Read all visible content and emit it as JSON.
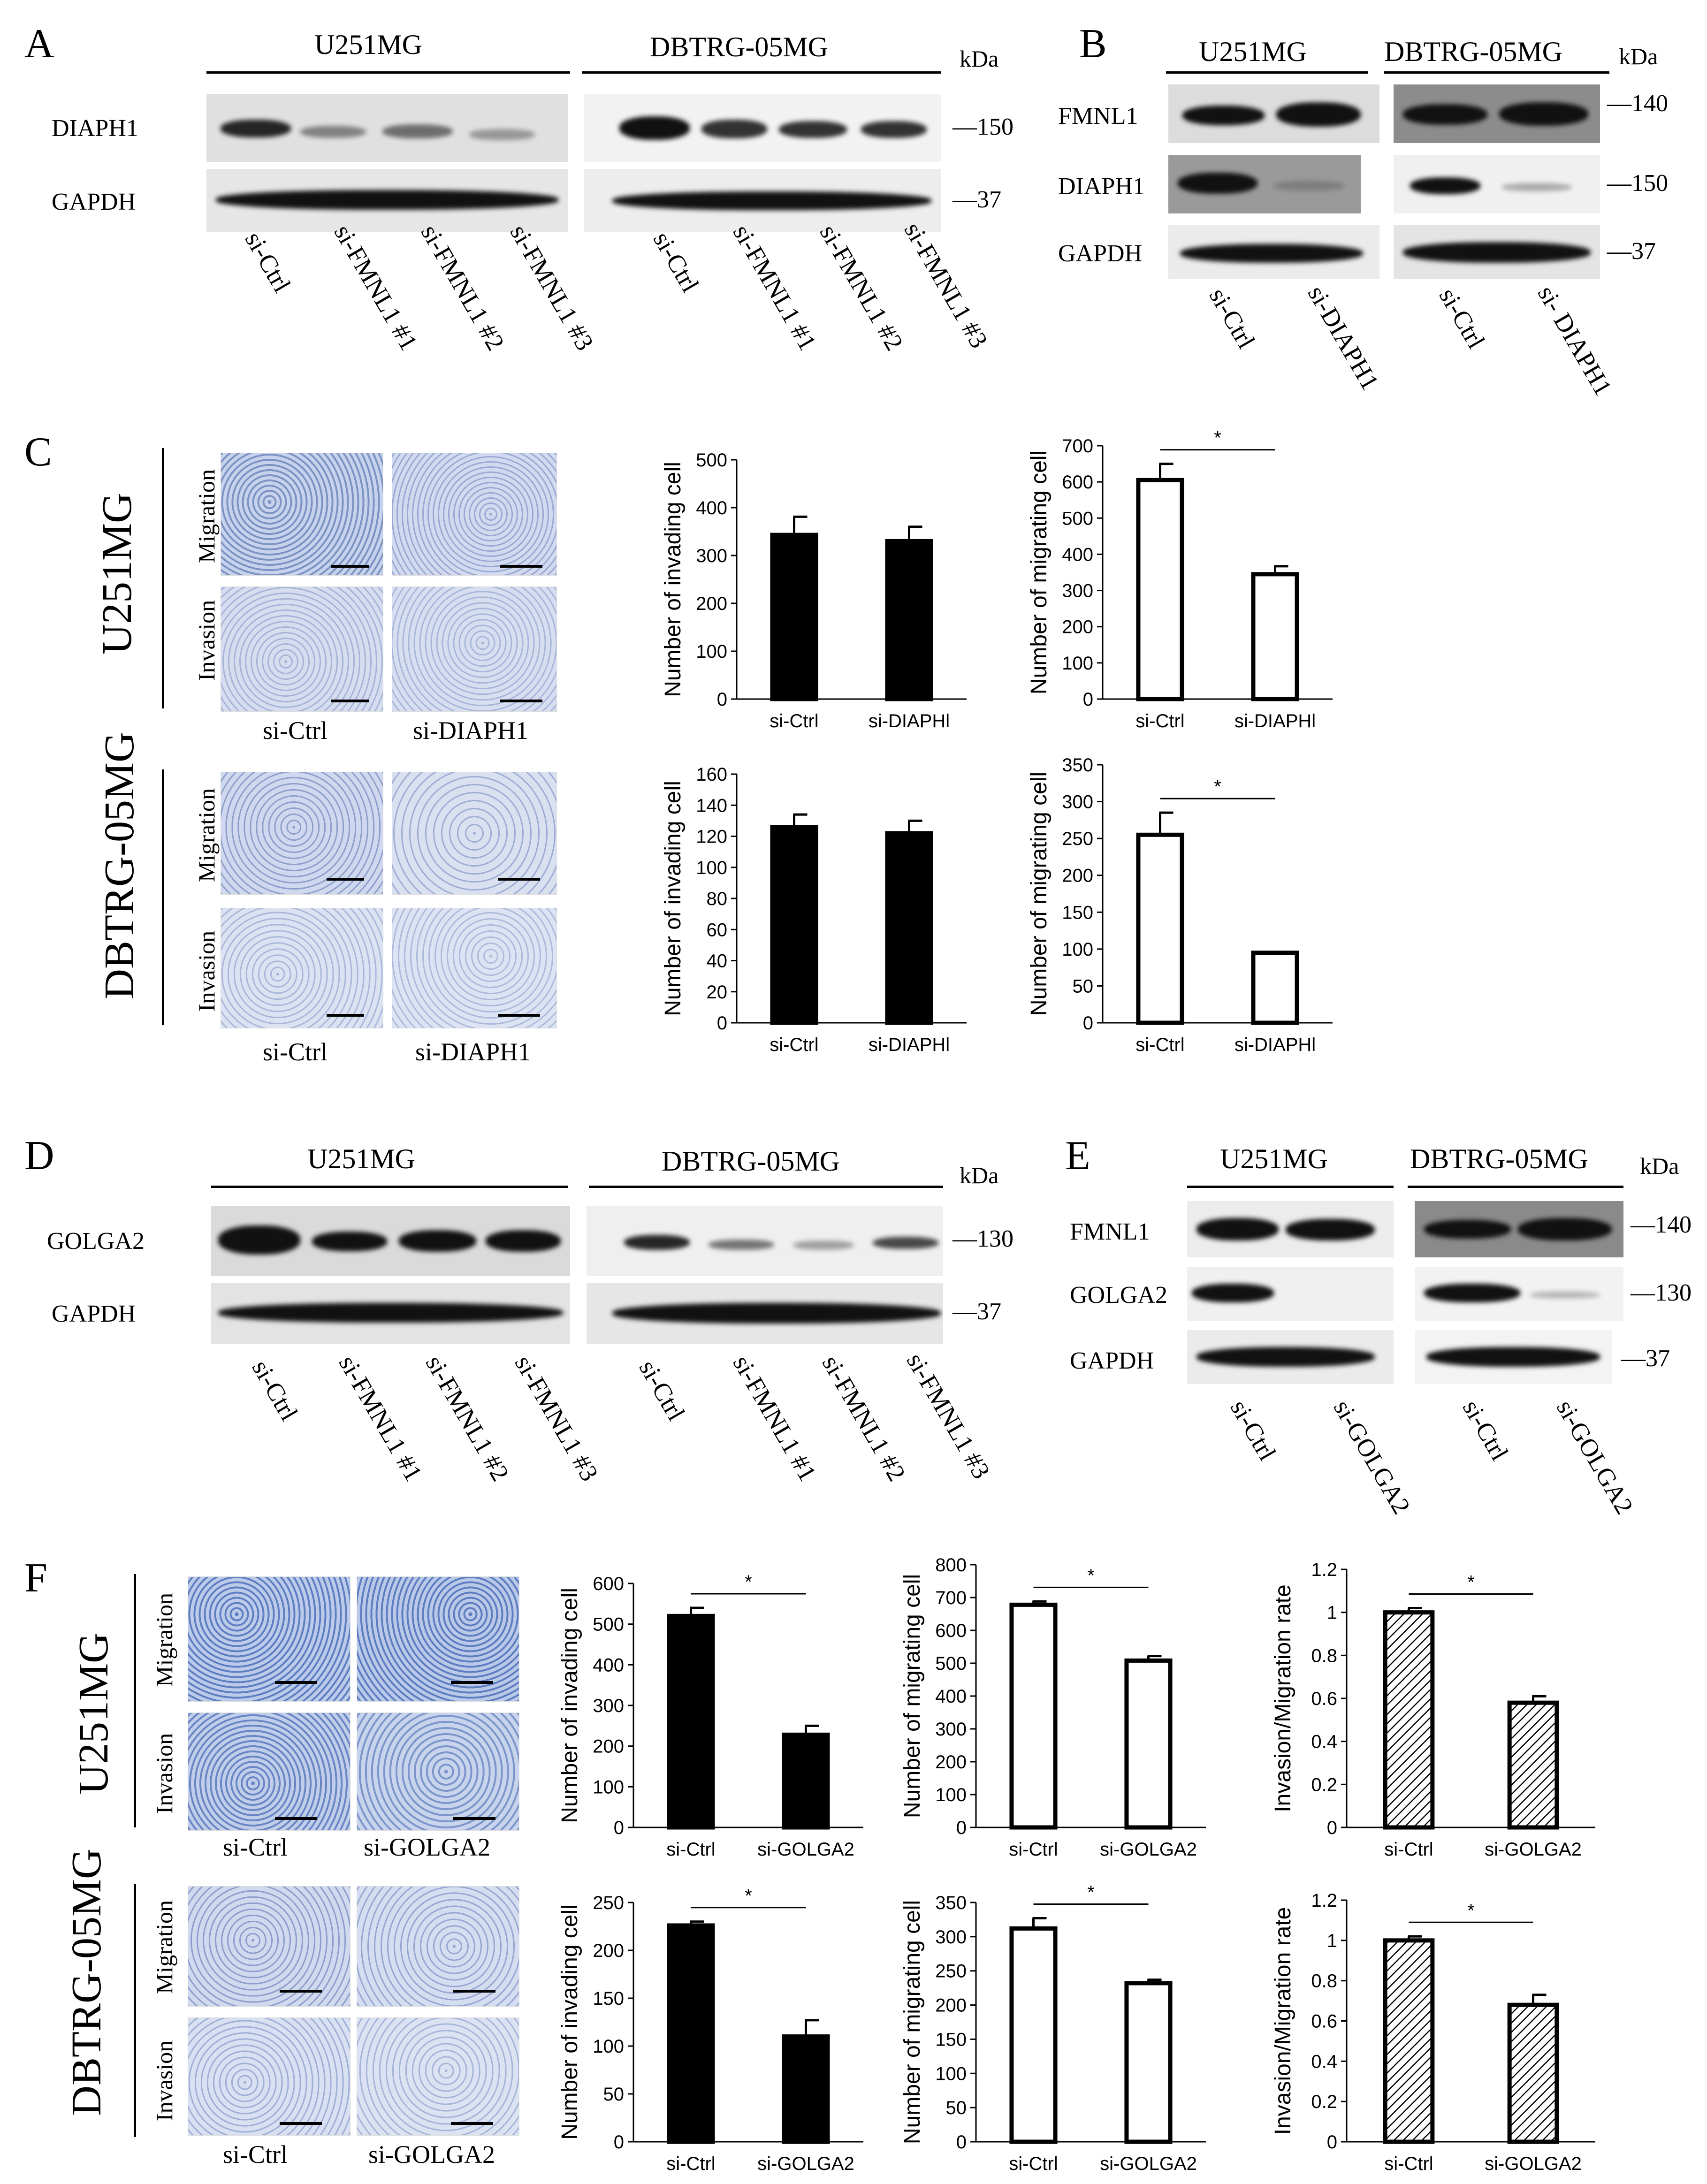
{
  "panels": {
    "A": {
      "letter": "A",
      "left_cell": "U251MG",
      "right_cell": "DBTRG-05MG",
      "kda": "kDa",
      "proteins": [
        "DIAPH1",
        "GAPDH"
      ],
      "mw": [
        "150",
        "37"
      ],
      "lanes": [
        "si-Ctrl",
        "si-FMNL1 #1",
        "si-FMNL1 #2",
        "si-FMNL1 #3"
      ]
    },
    "B": {
      "letter": "B",
      "left_cell": "U251MG",
      "right_cell": "DBTRG-05MG",
      "kda": "kDa",
      "proteins": [
        "FMNL1",
        "DIAPH1",
        "GAPDH"
      ],
      "mw": [
        "140",
        "150",
        "37"
      ],
      "lanes": [
        "si-Ctrl",
        "si-DIAPH1"
      ],
      "lanes_right": [
        "si-Ctrl",
        "si- DIAPH1"
      ]
    },
    "C": {
      "letter": "C",
      "cells": [
        "U251MG",
        "DBTRG-05MG"
      ],
      "rows": [
        "Migration",
        "Invasion"
      ],
      "conditions": [
        "si-Ctrl",
        "si-DIAPH1"
      ]
    },
    "D": {
      "letter": "D",
      "left_cell": "U251MG",
      "right_cell": "DBTRG-05MG",
      "kda": "kDa",
      "proteins": [
        "GOLGA2",
        "GAPDH"
      ],
      "mw": [
        "130",
        "37"
      ],
      "lanes": [
        "si-Ctrl",
        "si-FMNL1 #1",
        "si-FMNL1 #2",
        "si-FMNL1 #3"
      ]
    },
    "E": {
      "letter": "E",
      "left_cell": "U251MG",
      "right_cell": "DBTRG-05MG",
      "kda": "kDa",
      "proteins": [
        "FMNL1",
        "GOLGA2",
        "GAPDH"
      ],
      "mw": [
        "140",
        "130",
        "37"
      ],
      "lanes": [
        "si-Ctrl",
        "si-GOLGA2"
      ]
    },
    "F": {
      "letter": "F",
      "cells": [
        "U251MG",
        "DBTRG-05MG"
      ],
      "rows": [
        "Migration",
        "Invasion"
      ],
      "conditions": [
        "si-Ctrl",
        "si-GOLGA2"
      ]
    }
  },
  "chart_data": [
    {
      "id": "C-u251-invading",
      "type": "bar",
      "fill": "#000000",
      "categories": [
        "si-Ctrl",
        "si-DIAPHl"
      ],
      "values": [
        343,
        330
      ],
      "errors": [
        38,
        30
      ],
      "ylabel": "Number of invading cell",
      "ylim": [
        0,
        500
      ],
      "yticks": [
        0,
        100,
        200,
        300,
        400,
        500
      ],
      "sig": false
    },
    {
      "id": "C-u251-migrating",
      "type": "bar",
      "fill": "#ffffff",
      "categories": [
        "si-Ctrl",
        "si-DIAPHl"
      ],
      "values": [
        605,
        345
      ],
      "errors": [
        45,
        22
      ],
      "ylabel": "Number of migrating cell",
      "ylim": [
        0,
        700
      ],
      "yticks": [
        0,
        100,
        200,
        300,
        400,
        500,
        600,
        700
      ],
      "sig": true,
      "sig_label": "*"
    },
    {
      "id": "C-dbtrg-invading",
      "type": "bar",
      "fill": "#000000",
      "categories": [
        "si-Ctrl",
        "si-DIAPHl"
      ],
      "values": [
        126,
        122
      ],
      "errors": [
        8,
        8
      ],
      "ylabel": "Number of invading cell",
      "ylim": [
        0,
        160
      ],
      "yticks": [
        0,
        20,
        40,
        60,
        80,
        100,
        120,
        140,
        160
      ],
      "sig": false
    },
    {
      "id": "C-dbtrg-migrating",
      "type": "bar",
      "fill": "#ffffff",
      "categories": [
        "si-Ctrl",
        "si-DIAPHl"
      ],
      "values": [
        255,
        95
      ],
      "errors": [
        30,
        0
      ],
      "ylabel": "Number of migrating cell",
      "ylim": [
        0,
        350
      ],
      "yticks": [
        0,
        50,
        100,
        150,
        200,
        250,
        300,
        350
      ],
      "sig": true,
      "sig_label": "*"
    },
    {
      "id": "F-u251-invading",
      "type": "bar",
      "fill": "#000000",
      "categories": [
        "si-Ctrl",
        "si-GOLGA2"
      ],
      "values": [
        520,
        228
      ],
      "errors": [
        20,
        22
      ],
      "ylabel": "Number of invading cell",
      "ylim": [
        0,
        600
      ],
      "yticks": [
        0,
        100,
        200,
        300,
        400,
        500,
        600
      ],
      "sig": true,
      "sig_label": "*"
    },
    {
      "id": "F-u251-migrating",
      "type": "bar",
      "fill": "#ffffff",
      "categories": [
        "si-Ctrl",
        "si-GOLGA2"
      ],
      "values": [
        678,
        508
      ],
      "errors": [
        10,
        14
      ],
      "ylabel": "Number of migrating cell",
      "ylim": [
        0,
        800
      ],
      "yticks": [
        0,
        100,
        200,
        300,
        400,
        500,
        600,
        700,
        800
      ],
      "sig": true,
      "sig_label": "*"
    },
    {
      "id": "F-u251-ratio",
      "type": "bar",
      "fill": "hatch",
      "categories": [
        "si-Ctrl",
        "si-GOLGA2"
      ],
      "values": [
        1.0,
        0.58
      ],
      "errors": [
        0.02,
        0.03
      ],
      "ylabel": "Invasion/Migration rate",
      "ylim": [
        0,
        1.2
      ],
      "yticks": [
        "0",
        "0.2",
        "0.4",
        "0.6",
        "0.8",
        "1",
        "1.2"
      ],
      "sig": true,
      "sig_label": "*"
    },
    {
      "id": "F-dbtrg-invading",
      "type": "bar",
      "fill": "#000000",
      "categories": [
        "si-Ctrl",
        "si-GOLGA2"
      ],
      "values": [
        226,
        110
      ],
      "errors": [
        4,
        17
      ],
      "ylabel": "Number of invading cell",
      "ylim": [
        0,
        250
      ],
      "yticks": [
        0,
        50,
        100,
        150,
        200,
        250
      ],
      "sig": true,
      "sig_label": "*"
    },
    {
      "id": "F-dbtrg-migrating",
      "type": "bar",
      "fill": "#ffffff",
      "categories": [
        "si-Ctrl",
        "si-GOLGA2"
      ],
      "values": [
        312,
        232
      ],
      "errors": [
        15,
        5
      ],
      "ylabel": "Number of migrating cell",
      "ylim": [
        0,
        350
      ],
      "yticks": [
        0,
        50,
        100,
        150,
        200,
        250,
        300,
        350
      ],
      "sig": true,
      "sig_label": "*"
    },
    {
      "id": "F-dbtrg-ratio",
      "type": "bar",
      "fill": "hatch",
      "categories": [
        "si-Ctrl",
        "si-GOLGA2"
      ],
      "values": [
        1.0,
        0.68
      ],
      "errors": [
        0.02,
        0.05
      ],
      "ylabel": "Invasion/Migration rate",
      "ylim": [
        0,
        1.2
      ],
      "yticks": [
        "0",
        "0.2",
        "0.4",
        "0.6",
        "0.8",
        "1",
        "1.2"
      ],
      "sig": true,
      "sig_label": "*"
    }
  ]
}
